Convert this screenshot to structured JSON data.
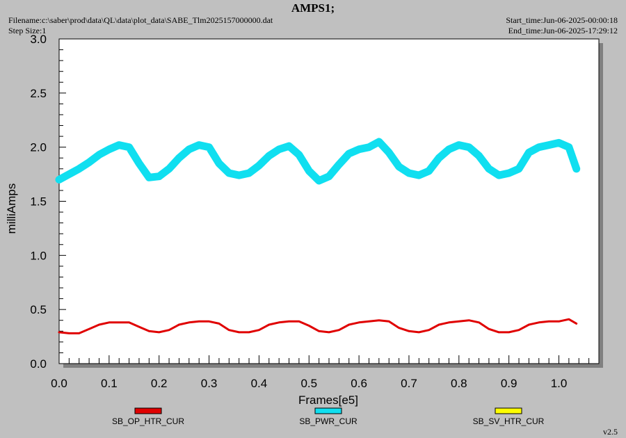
{
  "header": {
    "title": "AMPS1;",
    "filename": "Filename:c:\\saber\\prod\\data\\QL\\data\\plot_data\\SABE_Tlm2025157000000.dat",
    "step_size": "Step Size:1",
    "start_time": "Start_time:Jun-06-2025-00:00:18",
    "end_time": "End_time:Jun-06-2025-17:29:12"
  },
  "version": "v2.5",
  "chart_data": {
    "type": "line",
    "xlabel": "Frames[e5]",
    "ylabel": "milliAmps",
    "xlim": [
      0.0,
      1.08
    ],
    "ylim": [
      0.0,
      3.0
    ],
    "x_ticks": [
      "0.0",
      "0.1",
      "0.2",
      "0.3",
      "0.4",
      "0.5",
      "0.6",
      "0.7",
      "0.8",
      "0.9",
      "1.0"
    ],
    "y_ticks": [
      "0.0",
      "0.5",
      "1.0",
      "1.5",
      "2.0",
      "2.5",
      "3.0"
    ],
    "grid": false,
    "legend_position": "bottom",
    "series": [
      {
        "name": "SB_OP_HTR_CUR",
        "color": "#e00000",
        "x": [
          0.0,
          0.02,
          0.04,
          0.06,
          0.08,
          0.1,
          0.12,
          0.14,
          0.16,
          0.18,
          0.2,
          0.22,
          0.24,
          0.26,
          0.28,
          0.3,
          0.32,
          0.34,
          0.36,
          0.38,
          0.4,
          0.42,
          0.44,
          0.46,
          0.48,
          0.5,
          0.52,
          0.54,
          0.56,
          0.58,
          0.6,
          0.62,
          0.64,
          0.66,
          0.68,
          0.7,
          0.72,
          0.74,
          0.76,
          0.78,
          0.8,
          0.82,
          0.84,
          0.86,
          0.88,
          0.9,
          0.92,
          0.94,
          0.96,
          0.98,
          1.0,
          1.02,
          1.035
        ],
        "values": [
          0.29,
          0.28,
          0.28,
          0.32,
          0.36,
          0.38,
          0.38,
          0.38,
          0.34,
          0.3,
          0.29,
          0.31,
          0.36,
          0.38,
          0.39,
          0.39,
          0.37,
          0.31,
          0.29,
          0.29,
          0.31,
          0.36,
          0.38,
          0.39,
          0.39,
          0.35,
          0.3,
          0.29,
          0.31,
          0.36,
          0.38,
          0.39,
          0.4,
          0.39,
          0.33,
          0.3,
          0.29,
          0.31,
          0.36,
          0.38,
          0.39,
          0.4,
          0.38,
          0.32,
          0.29,
          0.29,
          0.31,
          0.36,
          0.38,
          0.39,
          0.39,
          0.41,
          0.37
        ]
      },
      {
        "name": "SB_PWR_CUR",
        "color": "#10dff0",
        "x": [
          0.0,
          0.02,
          0.04,
          0.06,
          0.08,
          0.1,
          0.12,
          0.14,
          0.16,
          0.18,
          0.2,
          0.22,
          0.24,
          0.26,
          0.28,
          0.3,
          0.32,
          0.34,
          0.36,
          0.38,
          0.4,
          0.42,
          0.44,
          0.46,
          0.48,
          0.5,
          0.52,
          0.54,
          0.56,
          0.58,
          0.6,
          0.62,
          0.64,
          0.66,
          0.68,
          0.7,
          0.72,
          0.74,
          0.76,
          0.78,
          0.8,
          0.82,
          0.84,
          0.86,
          0.88,
          0.9,
          0.92,
          0.94,
          0.96,
          0.98,
          1.0,
          1.02,
          1.035
        ],
        "values": [
          1.7,
          1.75,
          1.8,
          1.86,
          1.93,
          1.98,
          2.02,
          2.0,
          1.85,
          1.72,
          1.73,
          1.8,
          1.9,
          1.98,
          2.02,
          2.0,
          1.85,
          1.76,
          1.74,
          1.76,
          1.83,
          1.92,
          1.98,
          2.01,
          1.93,
          1.78,
          1.69,
          1.73,
          1.84,
          1.94,
          1.98,
          2.0,
          2.05,
          1.95,
          1.82,
          1.76,
          1.74,
          1.78,
          1.9,
          1.98,
          2.02,
          2.0,
          1.92,
          1.8,
          1.74,
          1.76,
          1.8,
          1.95,
          2.0,
          2.02,
          2.04,
          2.0,
          1.8
        ]
      },
      {
        "name": "SB_SV_HTR_CUR",
        "color": "#ffff00",
        "x": [],
        "values": []
      }
    ]
  }
}
